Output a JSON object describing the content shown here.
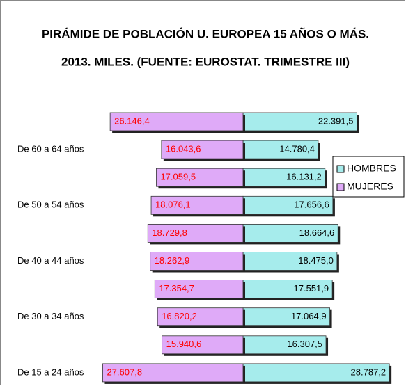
{
  "chart_data": {
    "type": "pyramid",
    "title": [
      "PIRÁMIDE DE POBLACIÓN U. EUROPEA 15 AÑOS O MÁS.",
      "2013. MILES. (FUENTE: EUROSTAT. TRIMESTRE III)"
    ],
    "categories": [
      null,
      "De 60 a 64 años",
      null,
      "De 50 a 54 años",
      null,
      "De 40 a 44 años",
      null,
      "De 30 a 34 años",
      null,
      "De 15 a 24 años"
    ],
    "series": [
      {
        "name": "HOMBRES",
        "color": "#a6ecec",
        "side": "right",
        "values": [
          22391.5,
          14780.4,
          16131.2,
          17656.6,
          18664.6,
          18475.0,
          17551.9,
          17064.9,
          16307.5,
          28787.2
        ],
        "value_labels": [
          "22.391,5",
          "14.780,4",
          "16.131,2",
          "17.656,6",
          "18.664,6",
          "18.475,0",
          "17.551,9",
          "17.064,9",
          "16.307,5",
          "28.787,2"
        ]
      },
      {
        "name": "MUJERES",
        "color": "#dfaaf8",
        "side": "left",
        "values": [
          26146.4,
          16043.6,
          17059.5,
          18076.1,
          18729.8,
          18262.9,
          17354.7,
          16820.2,
          15940.6,
          27607.8
        ],
        "value_labels": [
          "26.146,4",
          "16.043,6",
          "17.059,5",
          "18.076,1",
          "18.729,8",
          "18.262,9",
          "17.354,7",
          "16.820,2",
          "15.940,6",
          "27.607,8"
        ]
      }
    ],
    "legend": "right"
  }
}
